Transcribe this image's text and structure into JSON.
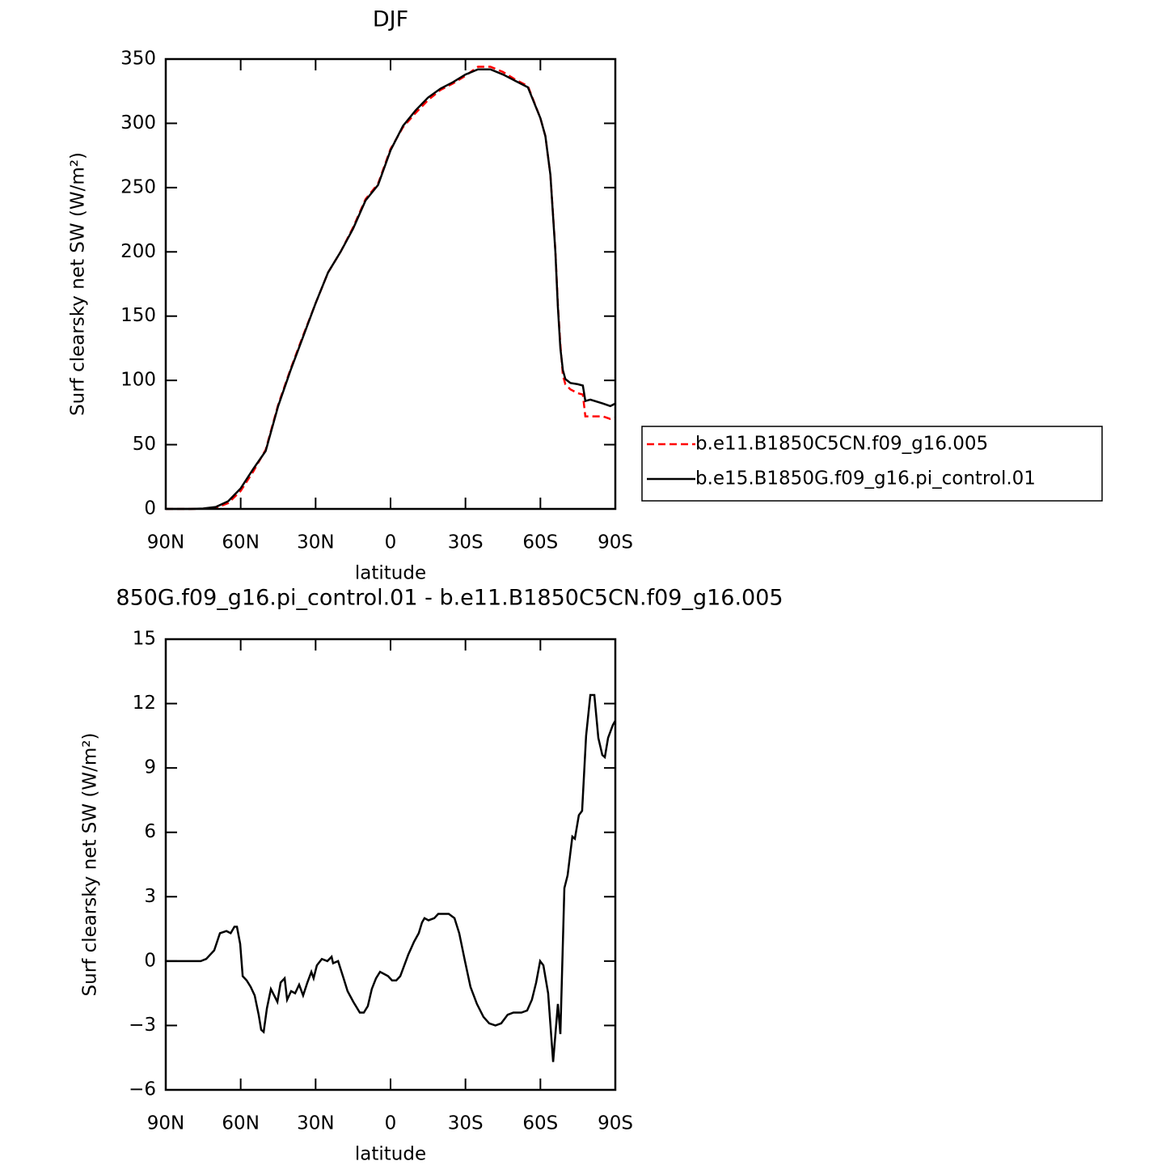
{
  "chart_data": [
    {
      "type": "line",
      "title": "DJF",
      "xlabel": "latitude",
      "ylabel": "Surf clearsky net SW (W/m²)",
      "x": [
        90,
        85,
        80,
        75,
        70,
        65,
        60,
        55,
        50,
        45,
        40,
        35,
        30,
        25,
        20,
        15,
        10,
        5,
        0,
        -5,
        -10,
        -15,
        -20,
        -25,
        -30,
        -35,
        -40,
        -45,
        -50,
        -55,
        -60,
        -62,
        -64,
        -65,
        -66,
        -67,
        -68,
        -69,
        -70,
        -72,
        -75,
        -77,
        -78,
        -80,
        -85,
        -88,
        -90
      ],
      "series": [
        {
          "name": "b.e11.B1850C5CN.f09_g16.005",
          "color": "#ff0000",
          "line_style": "dashed",
          "values": [
            0,
            0,
            0,
            0.2,
            0.8,
            4.5,
            14,
            29,
            46,
            81,
            109,
            135,
            160,
            184,
            200,
            219,
            241,
            253,
            280,
            297,
            308,
            318,
            326,
            331,
            337,
            344,
            344,
            340,
            334,
            329,
            304,
            290,
            260,
            231,
            201,
            159,
            128,
            104,
            97,
            93,
            90,
            89,
            72,
            72,
            72,
            70,
            71
          ]
        },
        {
          "name": "b.e15.B1850G.f09_g16.pi_control.01",
          "color": "#000000",
          "line_style": "solid",
          "values": [
            0,
            0,
            0,
            0.3,
            1.5,
            6,
            16,
            31,
            45,
            80,
            108,
            134,
            160,
            184,
            200,
            218,
            240,
            252,
            279,
            298,
            310,
            320,
            327,
            332,
            338,
            342,
            342,
            338,
            333,
            328,
            304,
            290,
            260,
            230,
            200,
            157,
            125,
            108,
            101,
            98,
            97,
            96,
            84,
            85,
            82,
            80,
            82
          ]
        }
      ],
      "xlim": [
        90,
        -90
      ],
      "ylim": [
        0,
        350
      ],
      "xticks": [
        {
          "value": 90,
          "label": "90N"
        },
        {
          "value": 60,
          "label": "60N"
        },
        {
          "value": 30,
          "label": "30N"
        },
        0,
        {
          "value": -30,
          "label": "30S"
        },
        {
          "value": -60,
          "label": "60S"
        },
        {
          "value": -90,
          "label": "90S"
        }
      ],
      "yticks": [
        0,
        50,
        100,
        150,
        200,
        250,
        300,
        350
      ],
      "legend": "right"
    },
    {
      "type": "line",
      "title": "850G.f09_g16.pi_control.01 - b.e11.B1850C5CN.f09_g16.005",
      "xlabel": "latitude",
      "ylabel": "Surf clearsky net SW (W/m²)",
      "x": [
        90,
        80,
        76,
        73.8,
        70.6,
        68.3,
        65.7,
        64,
        62.5,
        61.5,
        60.2,
        59.2,
        57.6,
        56,
        54.4,
        52.8,
        51.8,
        50.8,
        49.5,
        47.9,
        45.3,
        44,
        42.4,
        41.4,
        39.8,
        38.2,
        36.6,
        35,
        33.3,
        31.7,
        30.8,
        29.5,
        27.5,
        25.3,
        23.6,
        23,
        21,
        18.8,
        17.2,
        14.9,
        12.3,
        10.7,
        9.1,
        7.5,
        5.8,
        4.2,
        2.6,
        1,
        -0.6,
        -2.3,
        -3.9,
        -5.5,
        -7.1,
        -9.4,
        -11.3,
        -12.6,
        -13.6,
        -15.2,
        -17.5,
        -19.1,
        -21,
        -23.3,
        -25.6,
        -27.5,
        -29.8,
        -32,
        -34.6,
        -37.2,
        -39.5,
        -42,
        -44.3,
        -46.9,
        -49.2,
        -52.4,
        -54.7,
        -56.6,
        -58.3,
        -59.9,
        -61.2,
        -63.1,
        -65.1,
        -67,
        -68,
        -69.6,
        -70.9,
        -72.8,
        -73.8,
        -75.4,
        -76.7,
        -78.3,
        -80,
        -81.6,
        -83.2,
        -84.8,
        -85.8,
        -87.1,
        -89,
        -90
      ],
      "series": [
        {
          "color": "#000000",
          "line_style": "solid",
          "values": [
            0,
            0,
            0,
            0.1,
            0.5,
            1.3,
            1.4,
            1.3,
            1.6,
            1.6,
            0.8,
            -0.7,
            -0.9,
            -1.2,
            -1.6,
            -2.5,
            -3.2,
            -3.3,
            -2.2,
            -1.3,
            -1.9,
            -1,
            -0.8,
            -1.8,
            -1.4,
            -1.5,
            -1.1,
            -1.6,
            -1,
            -0.5,
            -0.8,
            -0.2,
            0.1,
            0,
            0.2,
            -0.1,
            0,
            -0.8,
            -1.4,
            -1.9,
            -2.4,
            -2.4,
            -2.1,
            -1.3,
            -0.8,
            -0.5,
            -0.6,
            -0.7,
            -0.9,
            -0.9,
            -0.7,
            -0.2,
            0.3,
            0.9,
            1.3,
            1.8,
            2,
            1.9,
            2,
            2.2,
            2.2,
            2.2,
            2,
            1.3,
            0,
            -1.2,
            -2,
            -2.6,
            -2.9,
            -3,
            -2.9,
            -2.5,
            -2.4,
            -2.4,
            -2.3,
            -1.8,
            -1,
            0,
            -0.2,
            -1.5,
            -4.7,
            -2,
            -3.4,
            3.4,
            4,
            5.8,
            5.7,
            6.8,
            7,
            10.5,
            12.4,
            12.4,
            10.4,
            9.6,
            9.5,
            10.4,
            11,
            11.2
          ]
        }
      ],
      "xlim": [
        90,
        -90
      ],
      "ylim": [
        -6,
        15
      ],
      "xticks": [
        {
          "value": 90,
          "label": "90N"
        },
        {
          "value": 60,
          "label": "60N"
        },
        {
          "value": 30,
          "label": "30N"
        },
        0,
        {
          "value": -30,
          "label": "30S"
        },
        {
          "value": -60,
          "label": "60S"
        },
        {
          "value": -90,
          "label": "90S"
        }
      ],
      "yticks": [
        {
          "value": -6,
          "label": "−6"
        },
        {
          "value": -3,
          "label": "−3"
        },
        0,
        3,
        6,
        9,
        12,
        15
      ]
    }
  ]
}
